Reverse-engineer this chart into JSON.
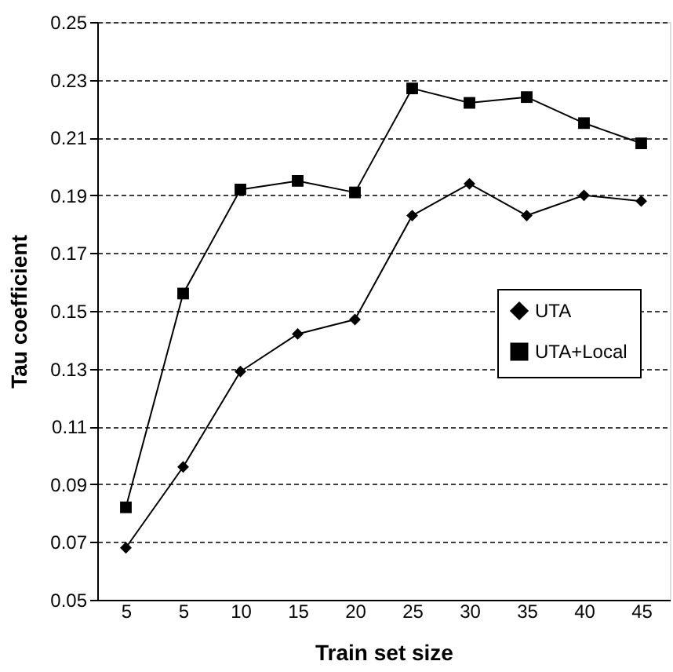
{
  "chart_data": {
    "type": "line",
    "xlabel": "Train set size",
    "ylabel": "Tau coefficient",
    "categories": [
      "5",
      "5",
      "10",
      "15",
      "20",
      "25",
      "30",
      "35",
      "40",
      "45"
    ],
    "series": [
      {
        "name": "UTA",
        "color": "#000000",
        "marker": "diamond",
        "values": [
          0.068,
          0.096,
          0.129,
          0.142,
          0.147,
          0.183,
          0.194,
          0.183,
          0.19,
          0.188
        ]
      },
      {
        "name": "UTA+Local",
        "color": "#000000",
        "marker": "square",
        "values": [
          0.082,
          0.156,
          0.192,
          0.195,
          0.191,
          0.227,
          0.222,
          0.224,
          0.215,
          0.208
        ]
      }
    ],
    "ylim": [
      0.05,
      0.25
    ],
    "yticks": [
      0.05,
      0.07,
      0.09,
      0.11,
      0.13,
      0.15,
      0.17,
      0.19,
      0.21,
      0.23,
      0.25
    ],
    "grid": "y",
    "legend": "right"
  }
}
